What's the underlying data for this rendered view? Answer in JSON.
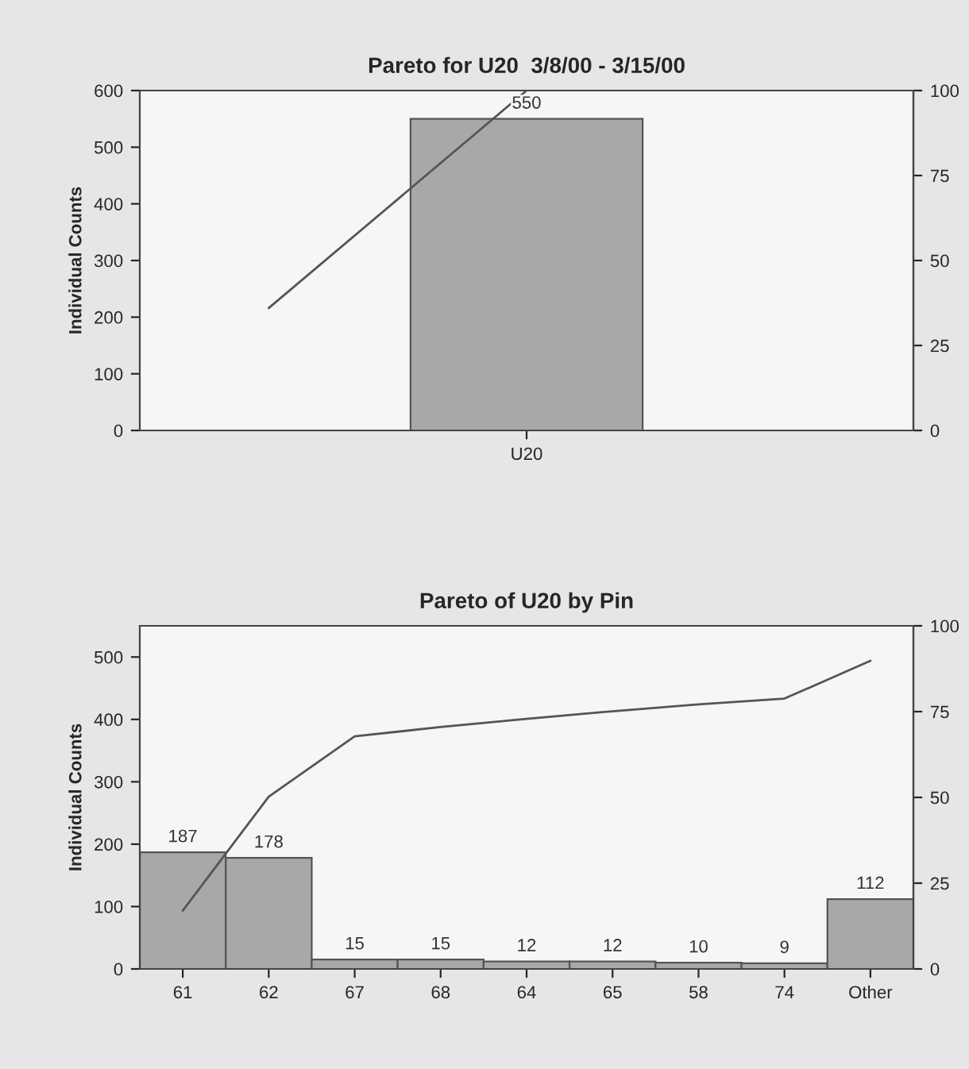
{
  "chart_data": [
    {
      "type": "bar",
      "title": "Pareto for U20  3/8/00 - 3/15/00",
      "ylabel": "Individual Counts",
      "categories": [
        null,
        "U20",
        null
      ],
      "ylim": [
        0,
        600
      ],
      "yticks": [
        0,
        100,
        200,
        300,
        400,
        500,
        600
      ],
      "y2lim": [
        0,
        100
      ],
      "y2ticks": [
        0,
        25,
        50,
        75,
        100
      ],
      "grid": false,
      "series": [
        {
          "type": "bar",
          "color": "#a8a8a8",
          "values": [
            null,
            550,
            null
          ],
          "value_labels": [
            null,
            "550",
            null
          ]
        },
        {
          "type": "line",
          "axis": "y2",
          "color": "#555555",
          "values": [
            36,
            100,
            null
          ]
        }
      ]
    },
    {
      "type": "bar",
      "title": "Pareto of U20 by Pin",
      "ylabel": "Individual Counts",
      "categories": [
        "61",
        "62",
        "67",
        "68",
        "64",
        "65",
        "58",
        "74",
        "Other"
      ],
      "ylim": [
        0,
        550
      ],
      "yticks": [
        0,
        100,
        200,
        300,
        400,
        500
      ],
      "y2lim": [
        0,
        100
      ],
      "y2ticks": [
        0,
        25,
        50,
        75,
        100
      ],
      "grid": false,
      "series": [
        {
          "type": "bar",
          "color": "#a8a8a8",
          "values": [
            187,
            178,
            15,
            15,
            12,
            12,
            10,
            9,
            112
          ],
          "value_labels": [
            "187",
            "178",
            "15",
            "15",
            "12",
            "12",
            "10",
            "9",
            "112"
          ]
        },
        {
          "type": "line",
          "axis": "y2",
          "color": "#555555",
          "values": [
            17,
            50.2,
            67.8,
            70.5,
            72.9,
            75.1,
            77.1,
            78.8,
            89.8
          ]
        }
      ]
    }
  ]
}
